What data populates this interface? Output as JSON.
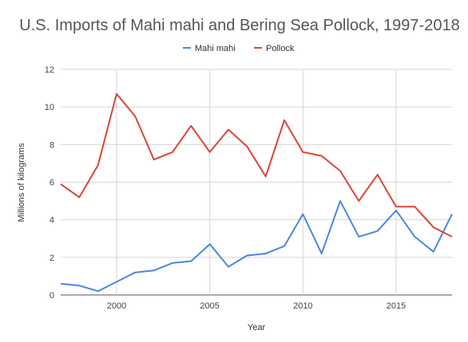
{
  "chart_data": {
    "type": "line",
    "title": "U.S. Imports of Mahi mahi and Bering Sea Pollock, 1997-2018",
    "xlabel": "Year",
    "ylabel": "Millions of kilograms",
    "x": [
      1997,
      1998,
      1999,
      2000,
      2001,
      2002,
      2003,
      2004,
      2005,
      2006,
      2007,
      2008,
      2009,
      2010,
      2011,
      2012,
      2013,
      2014,
      2015,
      2016,
      2017,
      2018
    ],
    "xlim": [
      1997,
      2018
    ],
    "ylim": [
      0,
      12
    ],
    "x_ticks": [
      "2000",
      "2005",
      "2010",
      "2015"
    ],
    "y_ticks": [
      "0",
      "2",
      "4",
      "6",
      "8",
      "10",
      "12"
    ],
    "grid": true,
    "legend_position": "top",
    "series": [
      {
        "name": "Mahi mahi",
        "color": "#4a86e8",
        "values": [
          0.6,
          0.5,
          0.2,
          0.7,
          1.2,
          1.3,
          1.7,
          1.8,
          2.7,
          1.5,
          2.1,
          2.2,
          2.6,
          4.3,
          2.2,
          5.0,
          3.1,
          3.4,
          4.5,
          3.1,
          2.3,
          4.3
        ]
      },
      {
        "name": "Pollock",
        "color": "#db4437",
        "values": [
          5.9,
          5.2,
          6.9,
          10.7,
          9.5,
          7.2,
          7.6,
          9.0,
          7.6,
          8.8,
          7.9,
          6.3,
          9.3,
          7.6,
          7.4,
          6.6,
          5.0,
          6.4,
          4.7,
          4.7,
          3.6,
          3.1
        ]
      }
    ]
  }
}
